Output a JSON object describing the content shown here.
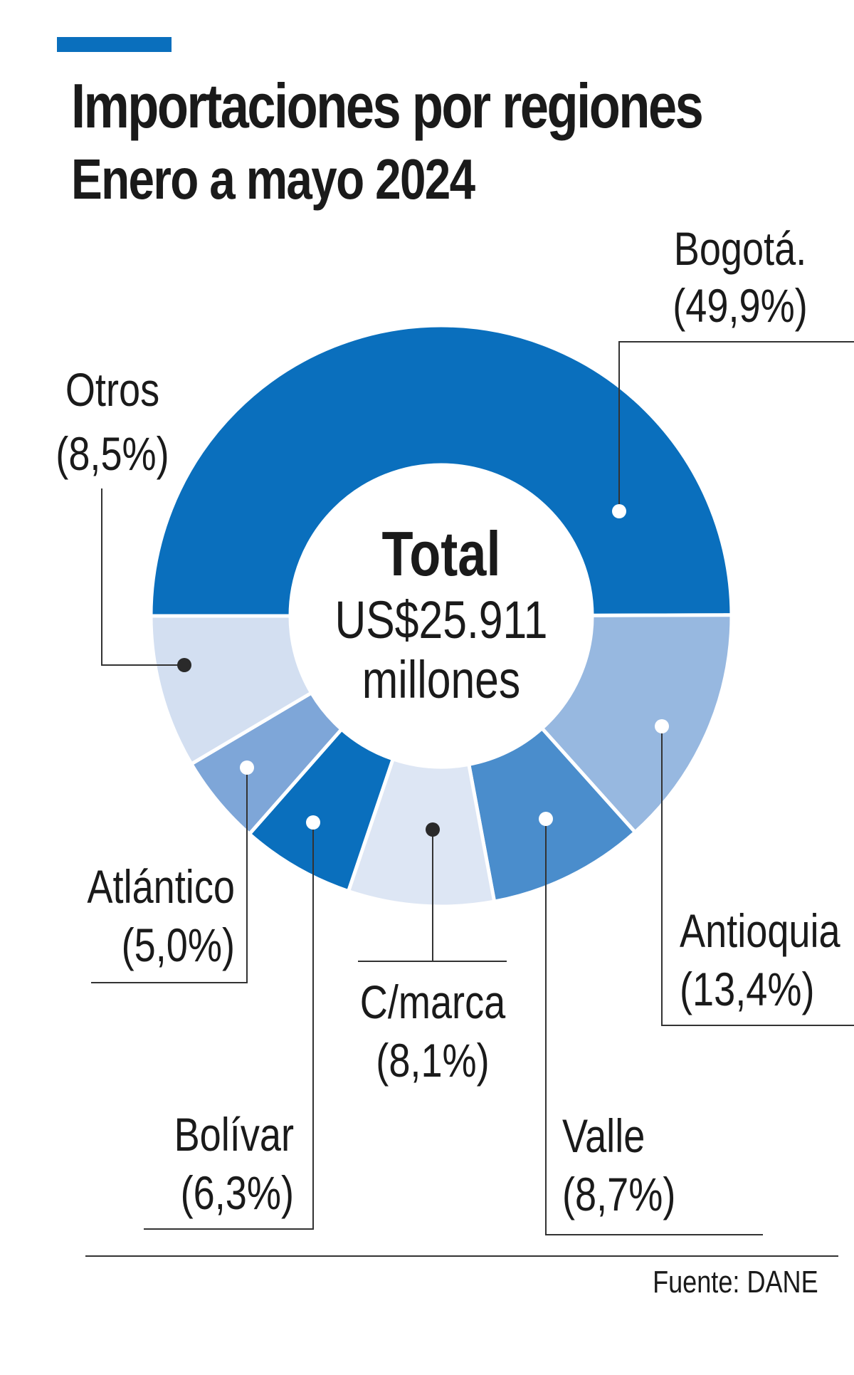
{
  "header": {
    "title": "Importaciones por regiones",
    "subtitle": "Enero a mayo 2024"
  },
  "center": {
    "line1": "Total",
    "line2": "US$25.911",
    "line3": "millones"
  },
  "source": "Fuente: DANE",
  "colors": {
    "accent": "#0a6fbd",
    "text": "#1a1a1a",
    "leader": "#333333"
  },
  "chart_data": {
    "type": "pie",
    "title": "Importaciones por regiones",
    "subtitle": "Enero a mayo 2024",
    "total_label": "US$25.911 millones",
    "slices": [
      {
        "name": "Bogotá.",
        "value": 49.9,
        "label": "(49,9%)",
        "color": "#0a6fbd"
      },
      {
        "name": "Antioquia",
        "value": 13.4,
        "label": "(13,4%)",
        "color": "#97b8e0"
      },
      {
        "name": "Valle",
        "value": 8.7,
        "label": "(8,7%)",
        "color": "#4a8dcc"
      },
      {
        "name": "C/marca",
        "value": 8.1,
        "label": "(8,1%)",
        "color": "#dde6f4"
      },
      {
        "name": "Bolívar",
        "value": 6.3,
        "label": "(6,3%)",
        "color": "#0a6fbd"
      },
      {
        "name": "Atlántico",
        "value": 5.0,
        "label": "(5,0%)",
        "color": "#7ea6d8"
      },
      {
        "name": "Otros",
        "value": 8.5,
        "label": "(8,5%)",
        "color": "#d3dff1"
      }
    ]
  }
}
